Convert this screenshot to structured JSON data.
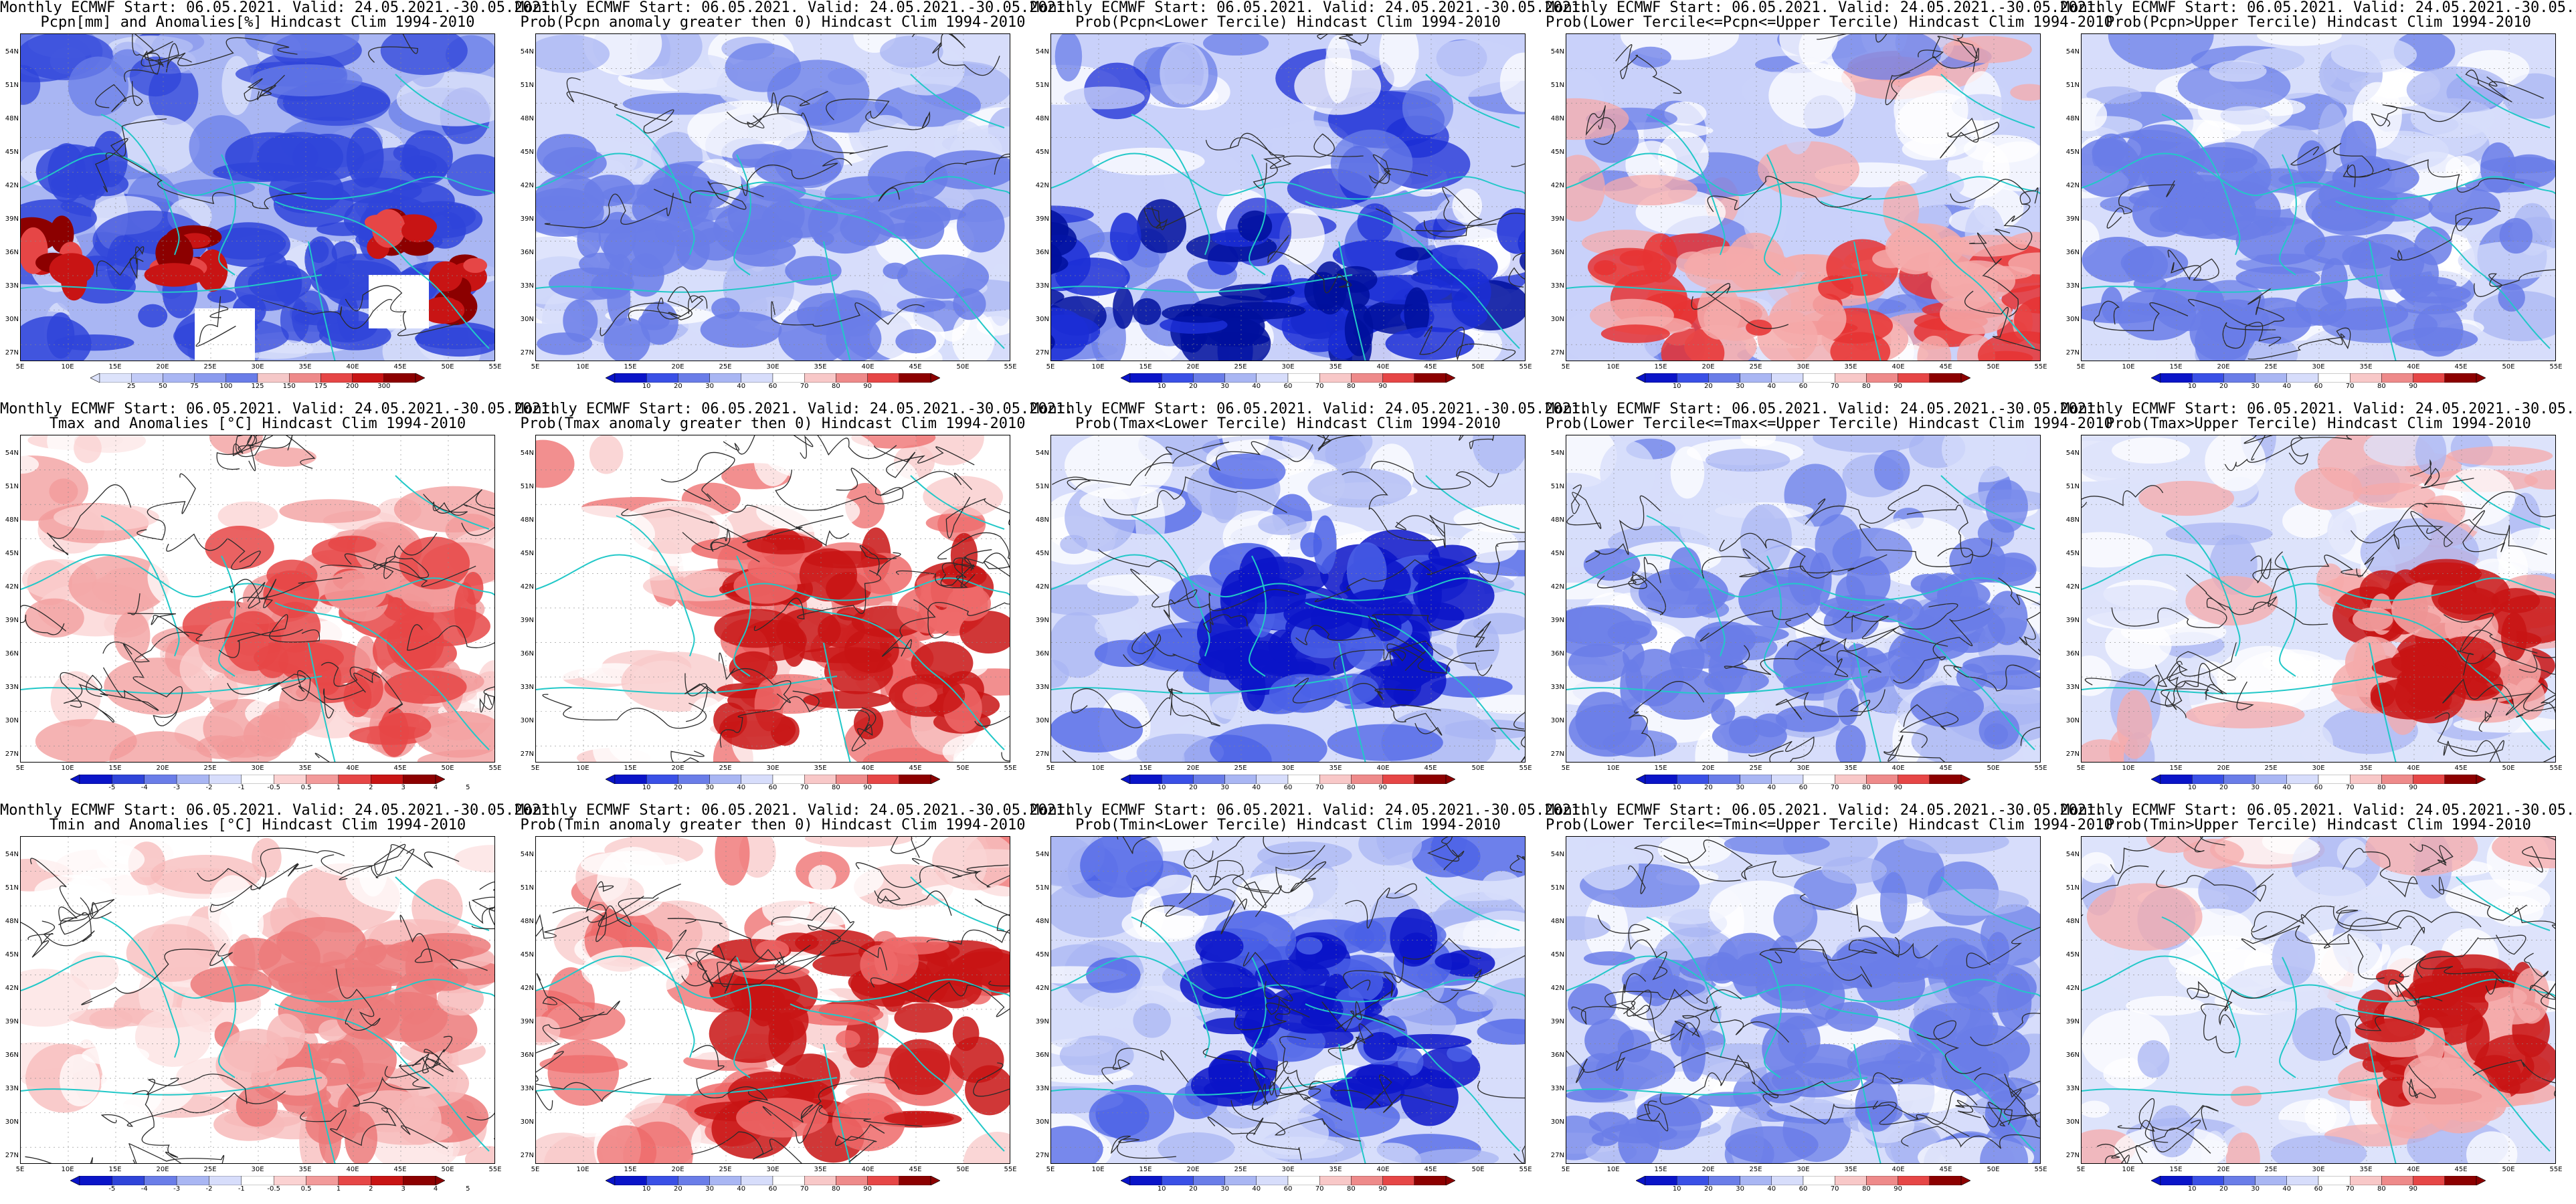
{
  "figure": {
    "header": "Monthly ECMWF Start: 06.05.2021. Valid: 24.05.2021.-30.05.2021.",
    "lat_labels": [
      "54N",
      "51N",
      "48N",
      "45N",
      "42N",
      "39N",
      "36N",
      "33N",
      "30N",
      "27N"
    ],
    "lon_labels": [
      "5E",
      "10E",
      "15E",
      "20E",
      "25E",
      "30E",
      "35E",
      "40E",
      "45E",
      "50E",
      "55E"
    ]
  },
  "panels": [
    {
      "title": "Pcpn[mm] and Anomalies[%] Hindcast Clim 1994-2010",
      "kind": "pcpn_anom",
      "ticks": [
        "25",
        "50",
        "75",
        "100",
        "125",
        "150",
        "175",
        "200",
        "300"
      ]
    },
    {
      "title": "Prob(Pcpn anomaly greater then 0) Hindcast Clim 1994-2010",
      "kind": "prob_blue",
      "ticks": [
        "10",
        "20",
        "30",
        "40",
        "60",
        "70",
        "80",
        "90"
      ]
    },
    {
      "title": "Prob(Pcpn<Lower Tercile) Hindcast Clim 1994-2010",
      "kind": "prob_deepblue",
      "ticks": [
        "10",
        "20",
        "30",
        "40",
        "60",
        "70",
        "80",
        "90"
      ]
    },
    {
      "title": "Prob(Lower Tercile<=Pcpn<=Upper Tercile) Hindcast Clim 1994-2010",
      "kind": "prob_mixed",
      "ticks": [
        "10",
        "20",
        "30",
        "40",
        "60",
        "70",
        "80",
        "90"
      ]
    },
    {
      "title": "Prob(Pcpn>Upper Tercile) Hindcast Clim 1994-2010",
      "kind": "prob_blue",
      "ticks": [
        "10",
        "20",
        "30",
        "40",
        "60",
        "70",
        "80",
        "90"
      ]
    },
    {
      "title": "Tmax and Anomalies [°C] Hindcast Clim 1994-2010",
      "kind": "t_anom",
      "ticks": [
        "-5",
        "-4",
        "-3",
        "-2",
        "-1",
        "-0.5",
        "0.5",
        "1",
        "2",
        "3",
        "4",
        "5"
      ]
    },
    {
      "title": "Prob(Tmax anomaly greater then 0) Hindcast Clim 1994-2010",
      "kind": "prob_red",
      "ticks": [
        "10",
        "20",
        "30",
        "40",
        "60",
        "70",
        "80",
        "90"
      ]
    },
    {
      "title": "Prob(Tmax<Lower Tercile) Hindcast Clim 1994-2010",
      "kind": "prob_deepblue2",
      "ticks": [
        "10",
        "20",
        "30",
        "40",
        "60",
        "70",
        "80",
        "90"
      ]
    },
    {
      "title": "Prob(Lower Tercile<=Tmax<=Upper Tercile) Hindcast Clim 1994-2010",
      "kind": "prob_blue",
      "ticks": [
        "10",
        "20",
        "30",
        "40",
        "60",
        "70",
        "80",
        "90"
      ]
    },
    {
      "title": "Prob(Tmax>Upper Tercile) Hindcast Clim 1994-2010",
      "kind": "prob_redspot",
      "ticks": [
        "10",
        "20",
        "30",
        "40",
        "60",
        "70",
        "80",
        "90"
      ]
    },
    {
      "title": "Tmin and Anomalies [°C] Hindcast Clim 1994-2010",
      "kind": "t_anom_light",
      "ticks": [
        "-5",
        "-4",
        "-3",
        "-2",
        "-1",
        "-0.5",
        "0.5",
        "1",
        "2",
        "3",
        "4",
        "5"
      ]
    },
    {
      "title": "Prob(Tmin anomaly greater then 0) Hindcast Clim 1994-2010",
      "kind": "prob_red",
      "ticks": [
        "10",
        "20",
        "30",
        "40",
        "60",
        "70",
        "80",
        "90"
      ]
    },
    {
      "title": "Prob(Tmin<Lower Tercile) Hindcast Clim 1994-2010",
      "kind": "prob_deepblue2",
      "ticks": [
        "10",
        "20",
        "30",
        "40",
        "60",
        "70",
        "80",
        "90"
      ]
    },
    {
      "title": "Prob(Lower Tercile<=Tmin<=Upper Tercile) Hindcast Clim 1994-2010",
      "kind": "prob_blue",
      "ticks": [
        "10",
        "20",
        "30",
        "40",
        "60",
        "70",
        "80",
        "90"
      ]
    },
    {
      "title": "Prob(Tmin>Upper Tercile) Hindcast Clim 1994-2010",
      "kind": "prob_redspot",
      "ticks": [
        "10",
        "20",
        "30",
        "40",
        "60",
        "70",
        "80",
        "90"
      ]
    }
  ],
  "colors": {
    "contour": "#2b2b2b",
    "coast": "#22c8c8",
    "deep_blue": "#0a14c8",
    "blue": "#3a50e6",
    "light_blue": "#aab4f5",
    "white": "#ffffff",
    "light_red": "#f5aaaa",
    "red": "#e63232",
    "dark_red": "#8c0000"
  }
}
